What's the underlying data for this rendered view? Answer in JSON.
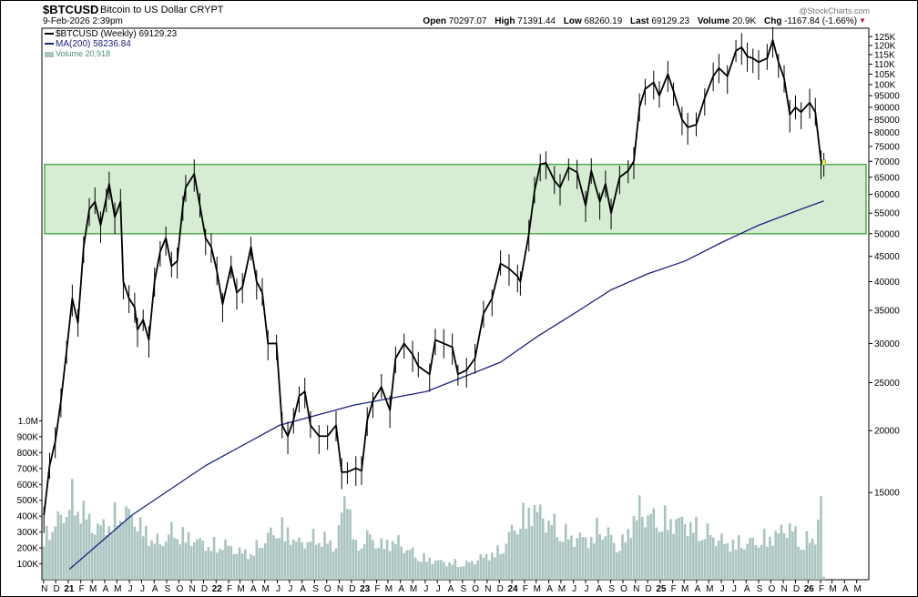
{
  "header": {
    "symbol": "$BTCUSD",
    "symbol_name": "Bitcoin to US Dollar  CRYPT",
    "datetime": "9-Feb-2026 2:39pm",
    "credit": "@StockCharts.com",
    "quote": {
      "open_label": "Open",
      "open": "70297.07",
      "high_label": "High",
      "high": "71391.44",
      "low_label": "Low",
      "low": "68260.19",
      "last_label": "Last",
      "last": "69129.23",
      "volume_label": "Volume",
      "volume": "20.9K",
      "chg_label": "Chg",
      "chg": "-1167.84 (-1.66%)"
    }
  },
  "legend": {
    "price": "$BTCUSD (Weekly) 69129.23",
    "ma": "MA(200) 58236.84",
    "volume": "Volume 20,918"
  },
  "colors": {
    "price": "#000000",
    "ma": "#1a237e",
    "volume": "#a9c3bf",
    "zone_fill": "#cfeacb",
    "zone_stroke": "#4fae4f",
    "last_bar": "#e8e84a",
    "down_arrow": "#cc1155"
  },
  "chart_data": {
    "type": "candlestick",
    "title": "$BTCUSD Bitcoin to US Dollar CRYPT",
    "interval": "Weekly",
    "y_scale": "log",
    "ylim": [
      10000,
      130000
    ],
    "y_ticks": [
      15000,
      20000,
      25000,
      30000,
      35000,
      40000,
      45000,
      50000,
      55000,
      60000,
      65000,
      70000,
      75000,
      80000,
      85000,
      90000,
      95000,
      100000,
      105000,
      110000,
      115000,
      120000,
      125000
    ],
    "y_tick_labels": [
      "15000",
      "20000",
      "25000",
      "30000",
      "35000",
      "40000",
      "45000",
      "50000",
      "55000",
      "60000",
      "65000",
      "70000",
      "75000",
      "80000",
      "85000",
      "90000",
      "95000",
      "100K",
      "105K",
      "110K",
      "115K",
      "120K",
      "125K"
    ],
    "volume_ticks": [
      100000,
      200000,
      300000,
      400000,
      500000,
      600000,
      700000,
      800000,
      900000,
      1000000
    ],
    "volume_tick_labels": [
      "100K",
      "200K",
      "300K",
      "400K",
      "500K",
      "600K",
      "700K",
      "800K",
      "900K",
      "1.0M"
    ],
    "x_ticks": [
      {
        "label": "N",
        "date": "2020-11"
      },
      {
        "label": "D",
        "date": "2020-12"
      },
      {
        "label": "21",
        "date": "2021-01",
        "bold": true
      },
      {
        "label": "F",
        "date": "2021-02"
      },
      {
        "label": "M",
        "date": "2021-03"
      },
      {
        "label": "A",
        "date": "2021-04"
      },
      {
        "label": "M",
        "date": "2021-05"
      },
      {
        "label": "J",
        "date": "2021-06"
      },
      {
        "label": "J",
        "date": "2021-07"
      },
      {
        "label": "A",
        "date": "2021-08"
      },
      {
        "label": "S",
        "date": "2021-09"
      },
      {
        "label": "O",
        "date": "2021-10"
      },
      {
        "label": "N",
        "date": "2021-11"
      },
      {
        "label": "D",
        "date": "2021-12"
      },
      {
        "label": "22",
        "date": "2022-01",
        "bold": true
      },
      {
        "label": "F",
        "date": "2022-02"
      },
      {
        "label": "M",
        "date": "2022-03"
      },
      {
        "label": "A",
        "date": "2022-04"
      },
      {
        "label": "M",
        "date": "2022-05"
      },
      {
        "label": "J",
        "date": "2022-06"
      },
      {
        "label": "J",
        "date": "2022-07"
      },
      {
        "label": "A",
        "date": "2022-08"
      },
      {
        "label": "S",
        "date": "2022-09"
      },
      {
        "label": "O",
        "date": "2022-10"
      },
      {
        "label": "N",
        "date": "2022-11"
      },
      {
        "label": "D",
        "date": "2022-12"
      },
      {
        "label": "23",
        "date": "2023-01",
        "bold": true
      },
      {
        "label": "F",
        "date": "2023-02"
      },
      {
        "label": "M",
        "date": "2023-03"
      },
      {
        "label": "A",
        "date": "2023-04"
      },
      {
        "label": "M",
        "date": "2023-05"
      },
      {
        "label": "J",
        "date": "2023-06"
      },
      {
        "label": "J",
        "date": "2023-07"
      },
      {
        "label": "A",
        "date": "2023-08"
      },
      {
        "label": "S",
        "date": "2023-09"
      },
      {
        "label": "O",
        "date": "2023-10"
      },
      {
        "label": "N",
        "date": "2023-11"
      },
      {
        "label": "D",
        "date": "2023-12"
      },
      {
        "label": "24",
        "date": "2024-01",
        "bold": true
      },
      {
        "label": "F",
        "date": "2024-02"
      },
      {
        "label": "M",
        "date": "2024-03"
      },
      {
        "label": "A",
        "date": "2024-04"
      },
      {
        "label": "M",
        "date": "2024-05"
      },
      {
        "label": "J",
        "date": "2024-06"
      },
      {
        "label": "J",
        "date": "2024-07"
      },
      {
        "label": "A",
        "date": "2024-08"
      },
      {
        "label": "S",
        "date": "2024-09"
      },
      {
        "label": "O",
        "date": "2024-10"
      },
      {
        "label": "N",
        "date": "2024-11"
      },
      {
        "label": "D",
        "date": "2024-12"
      },
      {
        "label": "25",
        "date": "2025-01",
        "bold": true
      },
      {
        "label": "F",
        "date": "2025-02"
      },
      {
        "label": "M",
        "date": "2025-03"
      },
      {
        "label": "A",
        "date": "2025-04"
      },
      {
        "label": "M",
        "date": "2025-05"
      },
      {
        "label": "J",
        "date": "2025-06"
      },
      {
        "label": "J",
        "date": "2025-07"
      },
      {
        "label": "A",
        "date": "2025-08"
      },
      {
        "label": "S",
        "date": "2025-09"
      },
      {
        "label": "O",
        "date": "2025-10"
      },
      {
        "label": "N",
        "date": "2025-11"
      },
      {
        "label": "D",
        "date": "2025-12"
      },
      {
        "label": "26",
        "date": "2026-01",
        "bold": true
      },
      {
        "label": "F",
        "date": "2026-02"
      },
      {
        "label": "M",
        "date": "2026-03"
      },
      {
        "label": "A",
        "date": "2026-04"
      },
      {
        "label": "M",
        "date": "2026-05"
      }
    ],
    "support_zone": {
      "low": 50000,
      "high": 69000
    },
    "price_series": {
      "name": "$BTCUSD (Weekly)",
      "points": [
        [
          "2020-11-02",
          13500
        ],
        [
          "2020-11-16",
          17000
        ],
        [
          "2020-11-30",
          19000
        ],
        [
          "2020-12-14",
          23000
        ],
        [
          "2020-12-28",
          29000
        ],
        [
          "2021-01-11",
          37000
        ],
        [
          "2021-01-25",
          33000
        ],
        [
          "2021-02-08",
          47000
        ],
        [
          "2021-02-22",
          56000
        ],
        [
          "2021-03-08",
          58000
        ],
        [
          "2021-03-22",
          52000
        ],
        [
          "2021-04-05",
          59000
        ],
        [
          "2021-04-12",
          63000
        ],
        [
          "2021-04-26",
          54000
        ],
        [
          "2021-05-10",
          58000
        ],
        [
          "2021-05-17",
          40000
        ],
        [
          "2021-05-31",
          37000
        ],
        [
          "2021-06-14",
          35500
        ],
        [
          "2021-06-21",
          32000
        ],
        [
          "2021-07-05",
          33500
        ],
        [
          "2021-07-19",
          30500
        ],
        [
          "2021-08-02",
          40000
        ],
        [
          "2021-08-16",
          46000
        ],
        [
          "2021-08-30",
          49000
        ],
        [
          "2021-09-13",
          43000
        ],
        [
          "2021-09-27",
          44000
        ],
        [
          "2021-10-11",
          57000
        ],
        [
          "2021-10-18",
          62000
        ],
        [
          "2021-11-08",
          66000
        ],
        [
          "2021-11-22",
          57000
        ],
        [
          "2021-12-06",
          49000
        ],
        [
          "2021-12-20",
          47000
        ],
        [
          "2022-01-03",
          42000
        ],
        [
          "2022-01-17",
          36000
        ],
        [
          "2022-02-07",
          43000
        ],
        [
          "2022-02-21",
          38000
        ],
        [
          "2022-03-07",
          39000
        ],
        [
          "2022-03-28",
          47000
        ],
        [
          "2022-04-11",
          40000
        ],
        [
          "2022-04-25",
          38000
        ],
        [
          "2022-05-09",
          30000
        ],
        [
          "2022-05-30",
          30000
        ],
        [
          "2022-06-13",
          20500
        ],
        [
          "2022-06-27",
          19500
        ],
        [
          "2022-07-11",
          21000
        ],
        [
          "2022-07-25",
          23500
        ],
        [
          "2022-08-08",
          24000
        ],
        [
          "2022-08-22",
          20500
        ],
        [
          "2022-09-12",
          19500
        ],
        [
          "2022-10-03",
          19500
        ],
        [
          "2022-10-24",
          20500
        ],
        [
          "2022-11-07",
          16500
        ],
        [
          "2022-11-21",
          16500
        ],
        [
          "2022-12-12",
          16800
        ],
        [
          "2022-12-26",
          16600
        ],
        [
          "2023-01-09",
          21000
        ],
        [
          "2023-01-23",
          23000
        ],
        [
          "2023-02-13",
          24500
        ],
        [
          "2023-03-06",
          22000
        ],
        [
          "2023-03-20",
          28000
        ],
        [
          "2023-04-10",
          30000
        ],
        [
          "2023-05-01",
          28500
        ],
        [
          "2023-05-15",
          27000
        ],
        [
          "2023-06-12",
          26000
        ],
        [
          "2023-06-26",
          30500
        ],
        [
          "2023-07-17",
          30000
        ],
        [
          "2023-08-07",
          29500
        ],
        [
          "2023-08-21",
          26000
        ],
        [
          "2023-09-11",
          26500
        ],
        [
          "2023-10-02",
          28000
        ],
        [
          "2023-10-23",
          34500
        ],
        [
          "2023-11-13",
          37000
        ],
        [
          "2023-12-04",
          43500
        ],
        [
          "2023-12-25",
          42500
        ],
        [
          "2024-01-15",
          41000
        ],
        [
          "2024-01-22",
          40000
        ],
        [
          "2024-02-12",
          50000
        ],
        [
          "2024-02-26",
          61000
        ],
        [
          "2024-03-11",
          69000
        ],
        [
          "2024-03-25",
          69500
        ],
        [
          "2024-04-15",
          64000
        ],
        [
          "2024-04-29",
          62000
        ],
        [
          "2024-05-20",
          68000
        ],
        [
          "2024-06-10",
          66500
        ],
        [
          "2024-07-01",
          57000
        ],
        [
          "2024-07-15",
          67000
        ],
        [
          "2024-08-05",
          58000
        ],
        [
          "2024-08-19",
          63000
        ],
        [
          "2024-09-02",
          55000
        ],
        [
          "2024-09-23",
          65000
        ],
        [
          "2024-10-14",
          67000
        ],
        [
          "2024-10-28",
          70000
        ],
        [
          "2024-11-11",
          90000
        ],
        [
          "2024-11-25",
          98000
        ],
        [
          "2024-12-16",
          101000
        ],
        [
          "2024-12-30",
          95000
        ],
        [
          "2025-01-20",
          105000
        ],
        [
          "2025-02-03",
          97000
        ],
        [
          "2025-02-24",
          85000
        ],
        [
          "2025-03-10",
          82000
        ],
        [
          "2025-03-31",
          83000
        ],
        [
          "2025-04-21",
          94000
        ],
        [
          "2025-05-12",
          104000
        ],
        [
          "2025-05-26",
          108000
        ],
        [
          "2025-06-16",
          104000
        ],
        [
          "2025-07-07",
          117000
        ],
        [
          "2025-07-21",
          119000
        ],
        [
          "2025-08-04",
          114000
        ],
        [
          "2025-08-18",
          113000
        ],
        [
          "2025-09-01",
          111000
        ],
        [
          "2025-09-22",
          113000
        ],
        [
          "2025-10-06",
          123000
        ],
        [
          "2025-10-20",
          111000
        ],
        [
          "2025-11-03",
          103000
        ],
        [
          "2025-11-17",
          87000
        ],
        [
          "2025-12-01",
          90000
        ],
        [
          "2025-12-15",
          88000
        ],
        [
          "2026-01-05",
          92000
        ],
        [
          "2026-01-19",
          88000
        ],
        [
          "2026-02-02",
          70000
        ],
        [
          "2026-02-09",
          69129.23
        ]
      ]
    },
    "ma_series": {
      "name": "MA(200)",
      "points": [
        [
          "2021-01-04",
          10500
        ],
        [
          "2021-06-07",
          13500
        ],
        [
          "2021-12-06",
          17000
        ],
        [
          "2022-06-06",
          20500
        ],
        [
          "2022-12-05",
          22500
        ],
        [
          "2023-06-05",
          24000
        ],
        [
          "2023-12-04",
          27500
        ],
        [
          "2024-03-04",
          31000
        ],
        [
          "2024-06-03",
          34500
        ],
        [
          "2024-09-02",
          38500
        ],
        [
          "2024-12-02",
          41500
        ],
        [
          "2025-03-03",
          44000
        ],
        [
          "2025-06-02",
          48000
        ],
        [
          "2025-09-01",
          52000
        ],
        [
          "2025-12-01",
          55500
        ],
        [
          "2026-02-09",
          58236.84
        ]
      ]
    },
    "volume_series": {
      "name": "Volume",
      "points": [
        [
          "2020-11-02",
          300000
        ],
        [
          "2020-11-30",
          380000
        ],
        [
          "2020-12-28",
          480000
        ],
        [
          "2021-01-11",
          560000
        ],
        [
          "2021-02-08",
          470000
        ],
        [
          "2021-03-08",
          350000
        ],
        [
          "2021-04-05",
          380000
        ],
        [
          "2021-05-17",
          470000
        ],
        [
          "2021-06-14",
          420000
        ],
        [
          "2021-07-19",
          300000
        ],
        [
          "2021-08-16",
          250000
        ],
        [
          "2021-09-13",
          330000
        ],
        [
          "2021-10-18",
          300000
        ],
        [
          "2021-11-22",
          260000
        ],
        [
          "2021-12-20",
          230000
        ],
        [
          "2022-01-17",
          250000
        ],
        [
          "2022-02-21",
          200000
        ],
        [
          "2022-03-28",
          180000
        ],
        [
          "2022-05-09",
          300000
        ],
        [
          "2022-06-13",
          360000
        ],
        [
          "2022-07-25",
          250000
        ],
        [
          "2022-09-12",
          300000
        ],
        [
          "2022-10-24",
          230000
        ],
        [
          "2022-11-07",
          450000
        ],
        [
          "2022-11-21",
          620000
        ],
        [
          "2022-12-12",
          220000
        ],
        [
          "2023-01-09",
          300000
        ],
        [
          "2023-02-13",
          240000
        ],
        [
          "2023-03-20",
          270000
        ],
        [
          "2023-05-15",
          160000
        ],
        [
          "2023-07-17",
          120000
        ],
        [
          "2023-09-11",
          110000
        ],
        [
          "2023-10-23",
          160000
        ],
        [
          "2023-12-04",
          200000
        ],
        [
          "2024-01-15",
          400000
        ],
        [
          "2024-02-26",
          500000
        ],
        [
          "2024-03-11",
          450000
        ],
        [
          "2024-05-20",
          300000
        ],
        [
          "2024-07-15",
          280000
        ],
        [
          "2024-08-05",
          380000
        ],
        [
          "2024-09-23",
          220000
        ],
        [
          "2024-11-11",
          490000
        ],
        [
          "2024-12-16",
          420000
        ],
        [
          "2025-02-24",
          400000
        ],
        [
          "2025-04-21",
          330000
        ],
        [
          "2025-06-16",
          250000
        ],
        [
          "2025-08-18",
          260000
        ],
        [
          "2025-10-06",
          300000
        ],
        [
          "2025-11-17",
          370000
        ],
        [
          "2025-12-15",
          250000
        ],
        [
          "2026-01-19",
          300000
        ],
        [
          "2026-02-02",
          510000
        ],
        [
          "2026-02-09",
          20918
        ]
      ]
    }
  }
}
